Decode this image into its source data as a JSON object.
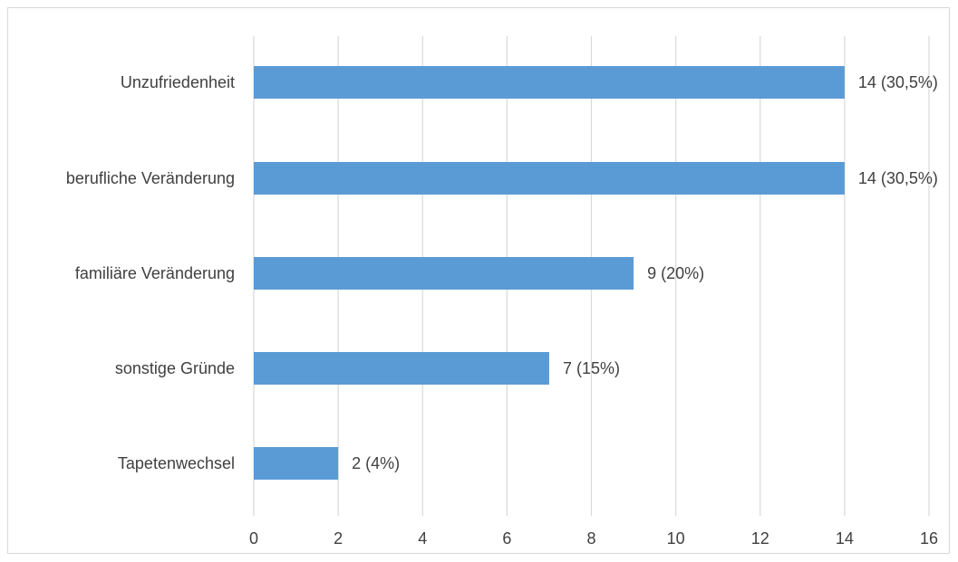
{
  "chart_data": {
    "type": "bar",
    "orientation": "horizontal",
    "categories": [
      "Unzufriedenheit",
      "berufliche Veränderung",
      "familiäre Veränderung",
      "sonstige Gründe",
      "Tapetenwechsel"
    ],
    "values": [
      14,
      14,
      9,
      7,
      2
    ],
    "data_labels": [
      "14 (30,5%)",
      "14 (30,5%)",
      "9 (20%)",
      "7 (15%)",
      "2 (4%)"
    ],
    "title": "",
    "xlabel": "",
    "ylabel": "",
    "xlim": [
      0,
      16
    ],
    "xticks": [
      0,
      2,
      4,
      6,
      8,
      10,
      12,
      14,
      16
    ],
    "xtick_labels": [
      "0",
      "2",
      "4",
      "6",
      "8",
      "10",
      "12",
      "14",
      "16"
    ],
    "grid": "vertical",
    "legend": "none",
    "bar_color": "#5b9bd5",
    "grid_color": "#d9d9d9",
    "text_color": "#404040"
  }
}
